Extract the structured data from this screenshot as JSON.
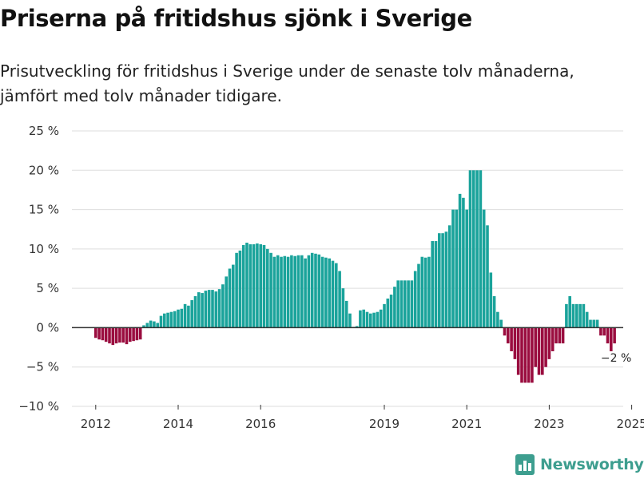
{
  "header": {
    "title": "Priserna på fritidshus sjönk i Sverige",
    "subtitle": "Prisutveckling för fritidshus i Sverige under de senaste tolv månaderna, jämfört med tolv månader tidigare."
  },
  "brand": {
    "name": "Newsworthy",
    "icon": "bar-chart-logo-icon",
    "color": "#3d9e8f"
  },
  "colors": {
    "positive": "#1aa39b",
    "negative": "#9a0d3f",
    "zero_line": "#333333",
    "grid": "#dddddd"
  },
  "chart_data": {
    "type": "bar",
    "title": "Priserna på fritidshus sjönk i Sverige",
    "subtitle": "Prisutveckling för fritidshus i Sverige under de senaste tolv månaderna, jämfört med tolv månader tidigare.",
    "xlabel": "",
    "ylabel": "",
    "unit": "%",
    "frequency": "monthly",
    "start": "2012-01",
    "ylim": [
      -10,
      25
    ],
    "yticks": [
      -10,
      -5,
      0,
      5,
      10,
      15,
      20,
      25
    ],
    "ytick_labels": [
      "−10 %",
      "−5 %",
      "0 %",
      "5 %",
      "10 %",
      "15 %",
      "20 %",
      "25 %"
    ],
    "xticks": [
      2012,
      2014,
      2016,
      2019,
      2021,
      2023,
      2025
    ],
    "xtick_labels": [
      "2012",
      "2014",
      "2016",
      "2019",
      "2021",
      "2023",
      "2025"
    ],
    "grid": true,
    "annotations": [
      {
        "text": "−2 %",
        "target": "last"
      }
    ],
    "values": [
      -1.3,
      -1.5,
      -1.6,
      -1.8,
      -2.0,
      -2.2,
      -2.0,
      -1.9,
      -1.9,
      -2.1,
      -1.8,
      -1.7,
      -1.6,
      -1.5,
      0.3,
      0.6,
      0.9,
      0.8,
      0.6,
      1.5,
      1.8,
      1.9,
      2.0,
      2.1,
      2.3,
      2.4,
      3.0,
      2.8,
      3.5,
      4.0,
      4.5,
      4.4,
      4.7,
      4.8,
      4.8,
      4.6,
      4.9,
      5.5,
      6.5,
      7.5,
      8.0,
      9.5,
      9.8,
      10.5,
      10.8,
      10.6,
      10.6,
      10.7,
      10.6,
      10.5,
      10.0,
      9.5,
      9.0,
      9.2,
      9.0,
      9.1,
      9.0,
      9.2,
      9.1,
      9.2,
      9.2,
      8.8,
      9.2,
      9.5,
      9.4,
      9.3,
      9.0,
      8.9,
      8.8,
      8.5,
      8.2,
      7.2,
      5.0,
      3.4,
      1.8,
      0.1,
      0.2,
      2.2,
      2.3,
      2.0,
      1.8,
      1.9,
      2.0,
      2.3,
      3.0,
      3.7,
      4.2,
      5.2,
      6.0,
      6.0,
      6.0,
      6.0,
      6.0,
      7.2,
      8.1,
      9.0,
      8.9,
      9.0,
      11.0,
      11.0,
      12.0,
      12.0,
      12.2,
      13.0,
      15.0,
      15.0,
      17.0,
      16.5,
      15.0,
      20.0,
      20.0,
      20.0,
      20.0,
      15.0,
      13.0,
      7.0,
      4.0,
      2.0,
      1.0,
      -1.0,
      -2.0,
      -3.0,
      -4.0,
      -6.0,
      -7.0,
      -7.0,
      -7.0,
      -7.0,
      -5.0,
      -6.0,
      -6.0,
      -5.0,
      -4.0,
      -3.0,
      -2.0,
      -2.0,
      -2.0,
      3.0,
      4.0,
      3.0,
      3.0,
      3.0,
      3.0,
      2.0,
      1.0,
      1.0,
      1.0,
      -1.0,
      -1.0,
      -2.0,
      -3.0,
      -2.0
    ]
  }
}
